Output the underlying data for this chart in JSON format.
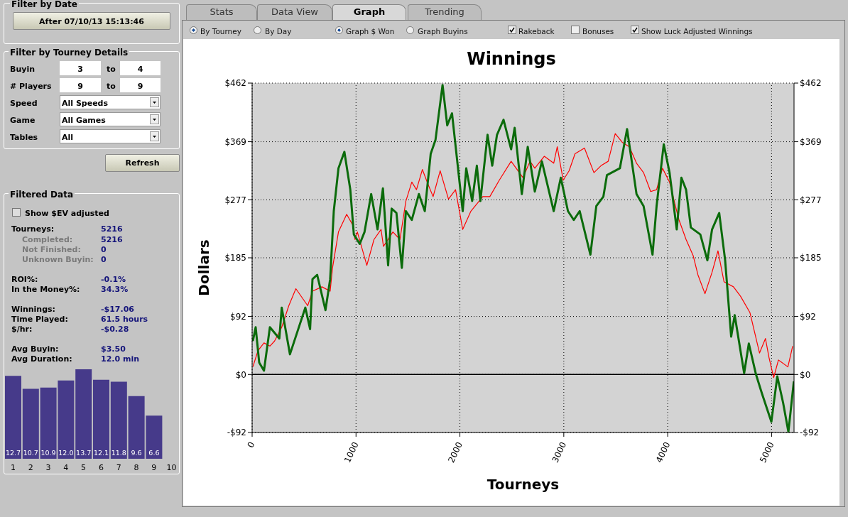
{
  "chart_data": [
    {
      "type": "line",
      "title": "Winnings",
      "xlabel": "Tourneys",
      "ylabel": "Dollars",
      "xlim": [
        0,
        5216
      ],
      "xticks": [
        0,
        1000,
        2000,
        3000,
        4000,
        5000
      ],
      "ylim": [
        -92,
        462
      ],
      "yticks": [
        {
          "value": -92,
          "label": "-$92"
        },
        {
          "value": 0,
          "label": "$0"
        },
        {
          "value": 92,
          "label": "$92"
        },
        {
          "value": 185,
          "label": "$185"
        },
        {
          "value": 277,
          "label": "$277"
        },
        {
          "value": 369,
          "label": "$369"
        },
        {
          "value": 462,
          "label": "$462"
        }
      ],
      "y2lim": [
        -92,
        462
      ],
      "y2ticks": [
        {
          "value": -92,
          "label": "-$92"
        },
        {
          "value": 0,
          "label": "$0"
        },
        {
          "value": 92,
          "label": "$92"
        },
        {
          "value": 185,
          "label": "$185"
        },
        {
          "value": 277,
          "label": "$277"
        },
        {
          "value": 369,
          "label": "$369"
        },
        {
          "value": 462,
          "label": "$462"
        }
      ],
      "grid": true,
      "ref_lines": [
        {
          "axis": "y",
          "value": 0,
          "color": "#000000",
          "line_style": "solid"
        }
      ],
      "series": [
        {
          "color": "#ff0000",
          "x": [
            7,
            57,
            114,
            171,
            216,
            285,
            353,
            421,
            535,
            581,
            672,
            751,
            774,
            831,
            910,
            968,
            990,
            1013,
            1104,
            1173,
            1241,
            1264,
            1355,
            1423,
            1480,
            1537,
            1582,
            1639,
            1685,
            1742,
            1810,
            1890,
            1958,
            2027,
            2106,
            2220,
            2288,
            2379,
            2493,
            2607,
            2675,
            2721,
            2812,
            2903,
            2937,
            2994,
            3051,
            3108,
            3199,
            3290,
            3358,
            3427,
            3495,
            3563,
            3631,
            3700,
            3768,
            3836,
            3893,
            3950,
            4018,
            4087,
            4109,
            4177,
            4246,
            4291,
            4359,
            4427,
            4484,
            4542,
            4633,
            4701,
            4792,
            4884,
            4941,
            4975,
            5020,
            5066,
            5157,
            5203
          ],
          "values": [
            12,
            38,
            50,
            45,
            53,
            75,
            109,
            136,
            109,
            132,
            139,
            132,
            169,
            226,
            254,
            237,
            214,
            226,
            173,
            214,
            230,
            203,
            226,
            214,
            275,
            305,
            293,
            325,
            305,
            282,
            323,
            278,
            293,
            230,
            259,
            282,
            282,
            308,
            338,
            312,
            338,
            327,
            346,
            335,
            361,
            308,
            323,
            350,
            359,
            320,
            331,
            338,
            382,
            368,
            361,
            335,
            320,
            290,
            293,
            327,
            305,
            259,
            245,
            214,
            188,
            158,
            128,
            162,
            196,
            147,
            139,
            124,
            98,
            34,
            57,
            27,
            -5,
            23,
            12,
            45
          ]
        },
        {
          "color": "#0b6b0b",
          "x": [
            7,
            34,
            68,
            114,
            171,
            262,
            285,
            364,
            444,
            512,
            558,
            581,
            626,
            706,
            751,
            786,
            831,
            888,
            945,
            979,
            1036,
            1082,
            1146,
            1207,
            1259,
            1309,
            1343,
            1389,
            1441,
            1480,
            1537,
            1605,
            1662,
            1719,
            1765,
            1833,
            1878,
            1924,
            2027,
            2061,
            2118,
            2163,
            2197,
            2266,
            2311,
            2357,
            2420,
            2493,
            2527,
            2596,
            2653,
            2721,
            2789,
            2903,
            2971,
            3040,
            3096,
            3153,
            3256,
            3313,
            3381,
            3415,
            3540,
            3609,
            3700,
            3768,
            3854,
            3893,
            3962,
            4018,
            4087,
            4132,
            4177,
            4223,
            4314,
            4382,
            4427,
            4496,
            4553,
            4611,
            4645,
            4736,
            4781,
            4850,
            4907,
            4998,
            5055,
            5111,
            5162,
            5214
          ],
          "values": [
            53,
            75,
            19,
            6,
            75,
            57,
            106,
            32,
            72,
            106,
            72,
            151,
            158,
            102,
            151,
            259,
            327,
            353,
            293,
            222,
            207,
            226,
            286,
            230,
            295,
            173,
            263,
            256,
            169,
            259,
            245,
            286,
            259,
            350,
            372,
            459,
            395,
            414,
            259,
            327,
            275,
            331,
            275,
            380,
            331,
            380,
            404,
            357,
            391,
            286,
            361,
            290,
            338,
            259,
            312,
            259,
            245,
            259,
            190,
            267,
            282,
            316,
            327,
            389,
            286,
            267,
            190,
            267,
            365,
            320,
            230,
            312,
            293,
            233,
            222,
            181,
            230,
            256,
            181,
            60,
            94,
            2,
            49,
            0,
            -30,
            -75,
            -3,
            -45,
            -91,
            -11
          ]
        }
      ]
    },
    {
      "type": "bar",
      "categories": [
        "1",
        "2",
        "3",
        "4",
        "5",
        "6",
        "7",
        "8",
        "9",
        "10"
      ],
      "values": [
        12.7,
        10.7,
        10.9,
        12.0,
        13.7,
        12.1,
        11.8,
        9.6,
        6.6,
        null
      ],
      "color": "#463a8a",
      "value_labels": [
        "12.7",
        "10.7",
        "10.9",
        "12.0",
        "13.7",
        "12.1",
        "11.8",
        "9.6",
        "6.6",
        null
      ]
    },
    {
      "type": "other",
      "annotations": [
        "Filter by Date",
        "After 07/10/13 15:13:46",
        "Filter by Tourney Details",
        "Buyin",
        "3",
        "to",
        "4",
        "# Players",
        "9",
        "to",
        "9",
        "Speed",
        "All Speeds",
        "Game",
        "All Games",
        "Tables",
        "All",
        "Refresh",
        "Filtered Data",
        "Show $EV adjusted",
        "Tourneys:",
        "5216",
        "Completed:",
        "5216",
        "Not Finished:",
        "0",
        "Unknown Buyin:",
        "0",
        "ROI%:",
        "-0.1%",
        "In the Money%:",
        "34.3%",
        "Winnings:",
        "-$17.06",
        "Time Played:",
        "61.5 hours",
        "$/hr:",
        "-$0.28",
        "Avg Buyin:",
        "$3.50",
        "Avg Duration:",
        "12.0 min",
        "Stats",
        "Data View",
        "Graph",
        "Trending",
        "By Tourney",
        "By Day",
        "Graph $ Won",
        "Graph Buyins",
        "Rakeback",
        "Bonuses",
        "Show Luck Adjusted Winnings"
      ]
    }
  ]
}
